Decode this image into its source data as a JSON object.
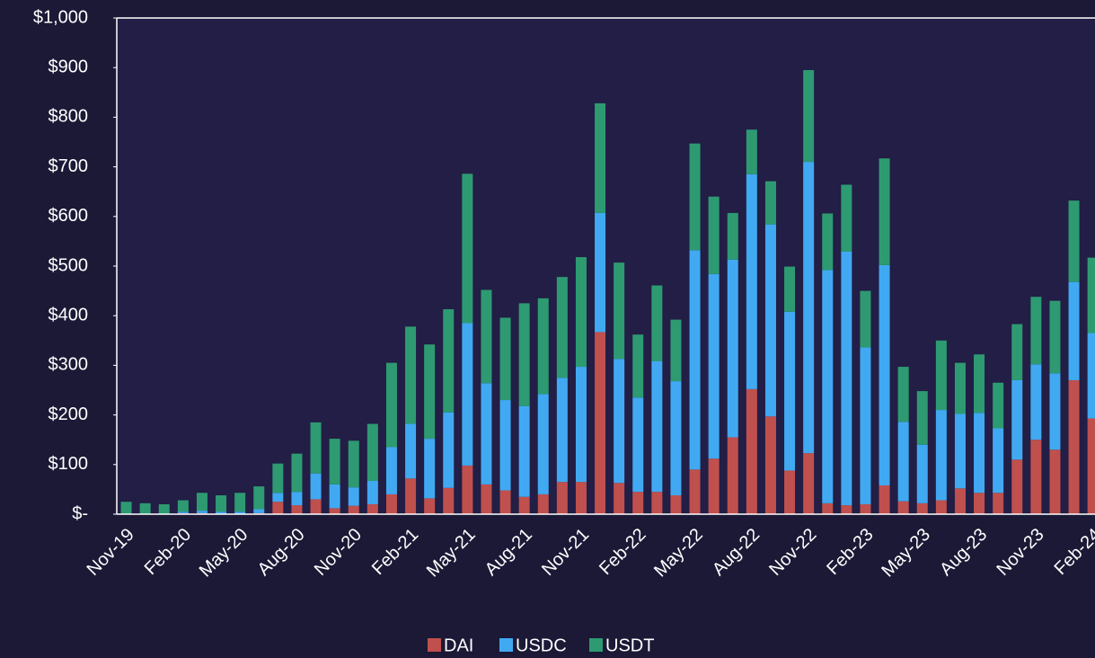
{
  "chart_data": {
    "type": "stacked_bar",
    "categories": [
      "Nov-19",
      null,
      null,
      "Feb-20",
      null,
      null,
      "May-20",
      null,
      null,
      "Aug-20",
      null,
      null,
      "Nov-20",
      null,
      null,
      "Feb-21",
      null,
      null,
      "May-21",
      null,
      null,
      "Aug-21",
      null,
      null,
      "Nov-21",
      null,
      null,
      "Feb-22",
      null,
      null,
      "May-22",
      null,
      null,
      "Aug-22",
      null,
      null,
      "Nov-22",
      null,
      null,
      "Feb-23",
      null,
      null,
      "May-23",
      null,
      null,
      "Aug-23",
      null,
      null,
      "Nov-23",
      null,
      null,
      "Feb-24"
    ],
    "series": [
      {
        "name": "DAI",
        "color": "#c0504d",
        "values": [
          0,
          0,
          0,
          2,
          2,
          1,
          1,
          2,
          25,
          18,
          30,
          12,
          17,
          20,
          40,
          72,
          32,
          53,
          98,
          60,
          48,
          35,
          40,
          65,
          65,
          367,
          63,
          45,
          45,
          38,
          90,
          112,
          155,
          252,
          197,
          88,
          123,
          22,
          18,
          20,
          58,
          26,
          22,
          28,
          52,
          43,
          43,
          110,
          150,
          130,
          270,
          193
        ]
      },
      {
        "name": "USDC",
        "color": "#41a9f2",
        "values": [
          0,
          0,
          0,
          3,
          5,
          4,
          4,
          8,
          18,
          27,
          52,
          48,
          37,
          47,
          95,
          110,
          120,
          152,
          287,
          204,
          182,
          183,
          202,
          210,
          232,
          240,
          250,
          190,
          263,
          230,
          442,
          372,
          358,
          433,
          387,
          320,
          587,
          470,
          511,
          316,
          444,
          160,
          118,
          182,
          150,
          161,
          130,
          160,
          152,
          154,
          198,
          172
        ]
      },
      {
        "name": "USDT",
        "color": "#2e9a72",
        "values": [
          25,
          22,
          20,
          23,
          36,
          33,
          38,
          46,
          59,
          77,
          103,
          92,
          94,
          115,
          170,
          196,
          190,
          208,
          301,
          188,
          166,
          207,
          193,
          203,
          221,
          221,
          194,
          127,
          153,
          124,
          215,
          156,
          94,
          90,
          87,
          91,
          185,
          114,
          135,
          114,
          215,
          111,
          108,
          140,
          103,
          118,
          92,
          113,
          136,
          146,
          164,
          152
        ]
      }
    ],
    "ylim": [
      0,
      1000
    ],
    "yticks": [
      {
        "value": 0,
        "label": "$-"
      },
      {
        "value": 100,
        "label": "$100"
      },
      {
        "value": 200,
        "label": "$200"
      },
      {
        "value": 300,
        "label": "$300"
      },
      {
        "value": 400,
        "label": "$400"
      },
      {
        "value": 500,
        "label": "$500"
      },
      {
        "value": 600,
        "label": "$600"
      },
      {
        "value": 700,
        "label": "$700"
      },
      {
        "value": 800,
        "label": "$800"
      },
      {
        "value": 900,
        "label": "$900"
      },
      {
        "value": 1000,
        "label": "$1,000"
      }
    ],
    "legend": "bottom"
  }
}
